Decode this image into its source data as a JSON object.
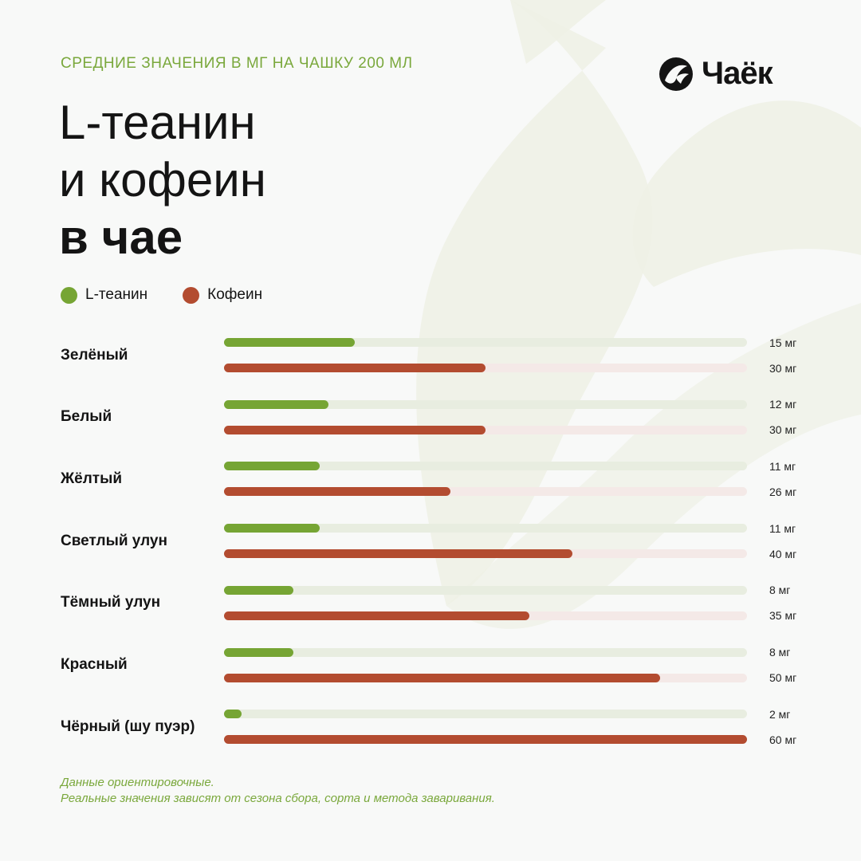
{
  "header": {
    "subtitle": "СРЕДНИЕ ЗНАЧЕНИЯ В МГ НА ЧАШКУ 200 МЛ",
    "title_line1": "L-теанин",
    "title_line2": "и кофеин",
    "title_line3": "в чае"
  },
  "logo": {
    "text": "Чаёк",
    "icon": "chayok-swirl-icon"
  },
  "colors": {
    "theanine": "#76a534",
    "theanine_track": "#e8ede0",
    "caffeine": "#b34c30",
    "caffeine_track": "#f4e9e7",
    "accent_text": "#7aa83c",
    "background": "#f8f9f8"
  },
  "chart_data": {
    "type": "bar",
    "orientation": "horizontal",
    "unit": "мг",
    "xlim": [
      0,
      60
    ],
    "categories": [
      "Зелёный",
      "Белый",
      "Жёлтый",
      "Светлый улун",
      "Тёмный улун",
      "Красный",
      "Чёрный (шу пуэр)"
    ],
    "series": [
      {
        "name": "L-теанин",
        "color": "#76a534",
        "values": [
          15,
          12,
          11,
          11,
          8,
          8,
          2
        ],
        "labels": [
          "15 мг",
          "12 мг",
          "11 мг",
          "11 мг",
          "8 мг",
          "8 мг",
          "2 мг"
        ]
      },
      {
        "name": "Кофеин",
        "color": "#b34c30",
        "values": [
          30,
          30,
          26,
          40,
          35,
          50,
          60
        ],
        "labels": [
          "30 мг",
          "30 мг",
          "26 мг",
          "40 мг",
          "35 мг",
          "50 мг",
          "60 мг"
        ]
      }
    ],
    "legend": "top-left",
    "grid": false
  },
  "footnote": {
    "line1": "Данные ориентировочные.",
    "line2": "Реальные значения зависят от сезона сбора, сорта и метода заваривания."
  }
}
